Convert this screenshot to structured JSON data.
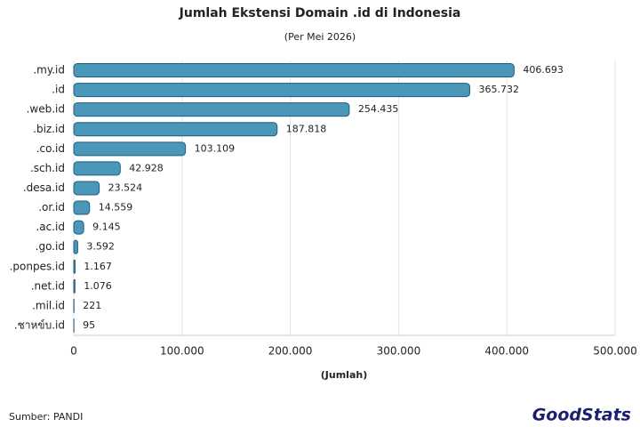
{
  "chart_data": {
    "type": "hbar",
    "title": "Jumlah Ekstensi Domain .id di Indonesia",
    "subtitle": "(Per Mei 2026)",
    "x_label": "(Jumlah)",
    "source": "Sumber: PANDI",
    "brand": "GoodStats",
    "categories": [
      ".my.id",
      ".id",
      ".web.id",
      ".biz.id",
      ".co.id",
      ".sch.id",
      ".desa.id",
      ".or.id",
      ".ac.id",
      ".go.id",
      ".ponpes.id",
      ".net.id",
      ".mil.id",
      ".ชาหข์บ.id"
    ],
    "values": [
      406693,
      365732,
      254435,
      187818,
      103109,
      42928,
      23524,
      14559,
      9145,
      3592,
      1167,
      1076,
      221,
      95
    ],
    "value_labels": [
      "406.693",
      "365.732",
      "254.435",
      "187.818",
      "103.109",
      "42.928",
      "23.524",
      "14.559",
      "9.145",
      "3.592",
      "1.167",
      "1.076",
      "221",
      "95"
    ],
    "color": "#4a97b9",
    "edge_color": "#1d5e7e",
    "xlim": [
      0,
      500000
    ],
    "xticks": [
      0,
      {
        "value": 100000,
        "label": "100.000"
      },
      {
        "value": 200000,
        "label": "200.000"
      },
      {
        "value": 300000,
        "label": "300.000"
      },
      {
        "value": 400000,
        "label": "400.000"
      },
      {
        "value": 500000,
        "label": "500.000"
      }
    ],
    "grid": true
  }
}
